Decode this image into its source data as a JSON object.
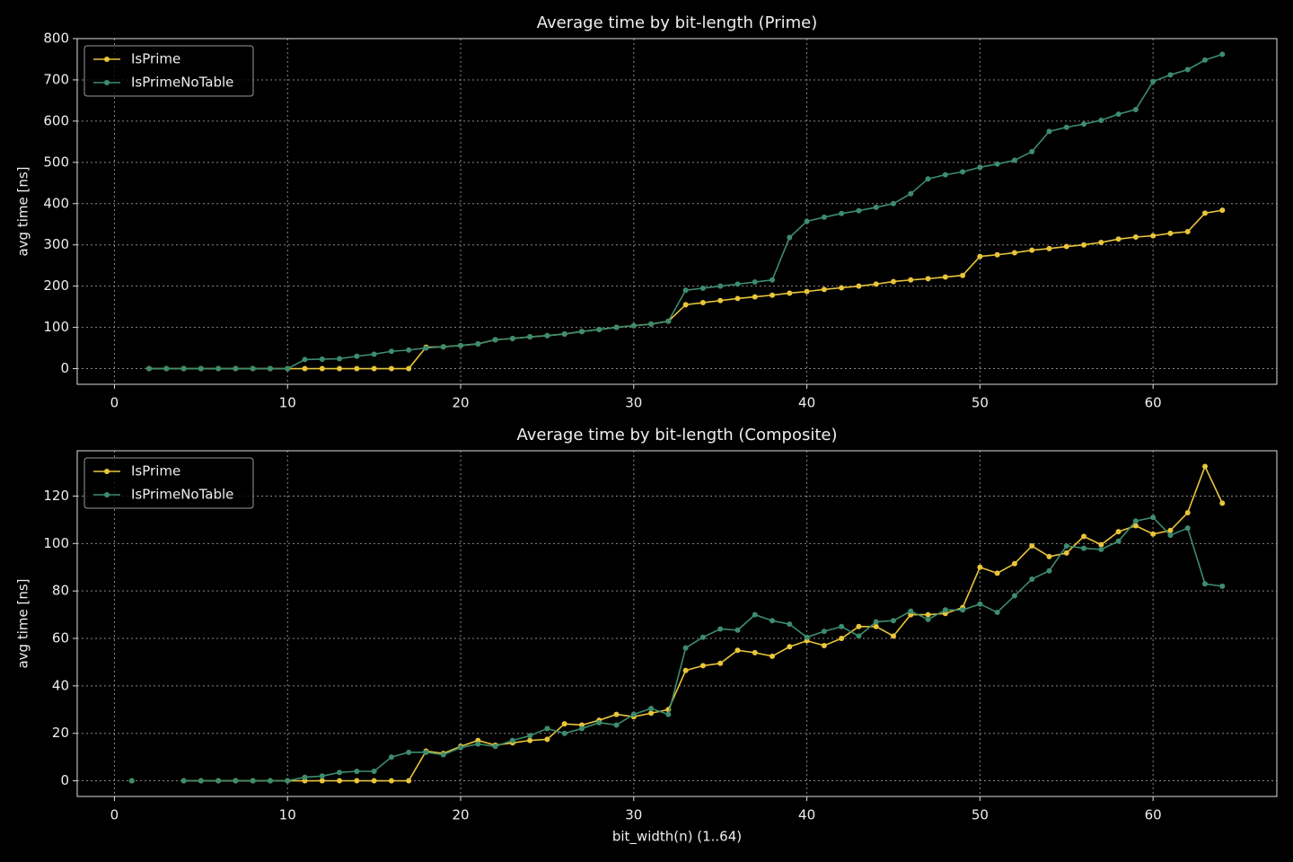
{
  "chart_data": [
    {
      "type": "line",
      "title": "Average time by bit-length (Prime)",
      "y_label": "avg time [ns]",
      "x": [
        2,
        3,
        4,
        5,
        6,
        7,
        8,
        9,
        10,
        11,
        12,
        13,
        14,
        15,
        16,
        17,
        18,
        19,
        20,
        21,
        22,
        23,
        24,
        25,
        26,
        27,
        28,
        29,
        30,
        31,
        32,
        33,
        34,
        35,
        36,
        37,
        38,
        39,
        40,
        41,
        42,
        43,
        44,
        45,
        46,
        47,
        48,
        49,
        50,
        51,
        52,
        53,
        54,
        55,
        56,
        57,
        58,
        59,
        60,
        61,
        62,
        63,
        64
      ],
      "series": [
        {
          "name": "IsPrime",
          "color": "#e8c53a",
          "values": [
            0,
            0,
            0,
            0,
            0,
            0,
            0,
            0,
            0,
            0,
            0,
            0,
            0,
            0,
            0,
            0,
            52,
            53,
            56,
            60,
            70,
            73,
            77,
            80,
            84,
            90,
            95,
            100,
            104,
            108,
            115,
            155,
            160,
            165,
            170,
            174,
            178,
            183,
            187,
            192,
            196,
            200,
            205,
            211,
            215,
            218,
            222,
            226,
            272,
            276,
            281,
            287,
            291,
            296,
            300,
            306,
            314,
            319,
            322,
            328,
            332,
            377,
            384
          ]
        },
        {
          "name": "IsPrimeNoTable",
          "color": "#3d8c6e",
          "values": [
            0,
            0,
            0,
            0,
            0,
            0,
            0,
            0,
            0,
            22,
            23,
            24,
            30,
            35,
            42,
            45,
            50,
            53,
            56,
            60,
            70,
            73,
            77,
            80,
            84,
            90,
            95,
            100,
            104,
            108,
            115,
            190,
            195,
            200,
            205,
            210,
            215,
            318,
            357,
            367,
            376,
            383,
            391,
            400,
            424,
            460,
            470,
            477,
            488,
            496,
            505,
            526,
            575,
            585,
            593,
            602,
            617,
            628,
            696,
            712,
            725,
            748,
            762
          ]
        }
      ],
      "xlim": [
        -2.15,
        67.15
      ],
      "xticks": [
        0,
        10,
        20,
        30,
        40,
        50,
        60
      ],
      "ylim": [
        -38,
        800
      ],
      "yticks": [
        0,
        100,
        200,
        300,
        400,
        500,
        600,
        700,
        800
      ],
      "grid": true,
      "legend": "upper-left"
    },
    {
      "type": "line",
      "title": "Average time by bit-length (Composite)",
      "x_label": "bit_width(n) (1..64)",
      "y_label": "avg time [ns]",
      "x": [
        1,
        2,
        3,
        4,
        5,
        6,
        7,
        8,
        9,
        10,
        11,
        12,
        13,
        14,
        15,
        16,
        17,
        18,
        19,
        20,
        21,
        22,
        23,
        24,
        25,
        26,
        27,
        28,
        29,
        30,
        31,
        32,
        33,
        34,
        35,
        36,
        37,
        38,
        39,
        40,
        41,
        42,
        43,
        44,
        45,
        46,
        47,
        48,
        49,
        50,
        51,
        52,
        53,
        54,
        55,
        56,
        57,
        58,
        59,
        60,
        61,
        62,
        63,
        64
      ],
      "series": [
        {
          "name": "IsPrime",
          "color": "#e8c53a",
          "values": [
            0,
            null,
            null,
            0,
            0,
            0,
            0,
            0,
            0,
            0,
            0,
            0,
            0,
            0,
            0,
            0,
            0,
            12.5,
            11.5,
            14.5,
            17,
            15,
            16,
            17,
            17.5,
            24,
            23.5,
            25.5,
            28,
            27,
            28.5,
            30,
            46.5,
            48.5,
            49.5,
            55,
            54,
            52.5,
            56.5,
            59,
            57,
            60,
            65,
            65,
            61,
            70,
            70,
            70.5,
            73,
            90,
            87.5,
            91.5,
            99,
            94.5,
            96,
            103,
            99.5,
            105,
            107.5,
            104,
            105.5,
            113,
            132.5,
            117
          ]
        },
        {
          "name": "IsPrimeNoTable",
          "color": "#3d8c6e",
          "values": [
            0,
            null,
            null,
            0,
            0,
            0,
            0,
            0,
            0,
            0,
            1.5,
            2,
            3.5,
            4,
            4,
            10,
            12,
            12,
            11,
            14,
            15.5,
            14.5,
            17,
            19,
            22,
            20,
            22,
            24.5,
            23.5,
            28,
            30.5,
            28,
            56,
            60.5,
            64,
            63.5,
            70,
            67.5,
            66,
            60.5,
            63,
            65,
            61,
            67,
            67.5,
            71.5,
            68,
            72,
            72,
            74.5,
            71,
            78,
            85,
            88.5,
            99,
            98,
            97.5,
            101,
            109.5,
            111,
            103.5,
            106.5,
            83,
            82
          ]
        }
      ],
      "xlim": [
        -2.15,
        67.15
      ],
      "xticks": [
        0,
        10,
        20,
        30,
        40,
        50,
        60
      ],
      "ylim": [
        -6.6,
        139.1
      ],
      "yticks": [
        0,
        20,
        40,
        60,
        80,
        100,
        120
      ],
      "grid": true,
      "legend": "upper-left"
    }
  ]
}
